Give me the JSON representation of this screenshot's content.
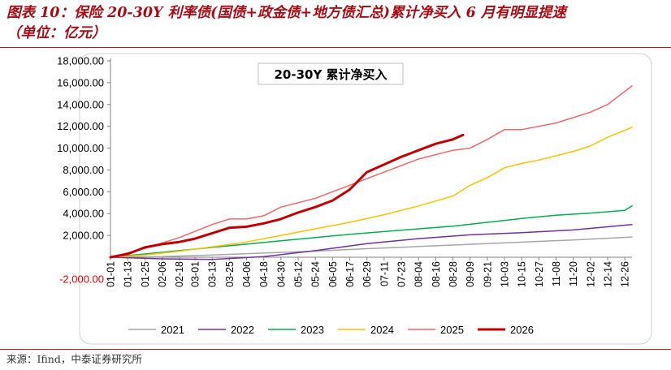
{
  "figure": {
    "title": "图表 10：保险 20-30Y 利率债(国债+政金债+地方债汇总)累计净买入 6 月有明显提速",
    "unit": "（单位：亿元）",
    "source": "来源：Ifind，中泰证券研究所"
  },
  "colors": {
    "heading": "#a30e17",
    "axis_negative": "#e00000",
    "rule": "#b01a20"
  },
  "chart_data": {
    "type": "line",
    "title": "20-30Y 累计净买入",
    "xlabel": "",
    "ylabel": "",
    "x_ticks": [
      "01-01",
      "01-13",
      "01-25",
      "02-06",
      "02-18",
      "03-01",
      "03-13",
      "03-25",
      "04-06",
      "04-18",
      "04-30",
      "05-12",
      "05-24",
      "06-05",
      "06-17",
      "06-29",
      "07-11",
      "07-23",
      "08-04",
      "08-16",
      "08-28",
      "09-09",
      "09-21",
      "10-03",
      "10-15",
      "10-27",
      "11-08",
      "11-20",
      "12-02",
      "12-14",
      "12-26"
    ],
    "y_ticks": [
      "18,000.00",
      "16,000.00",
      "14,000.00",
      "12,000.00",
      "10,000.00",
      "8,000.00",
      "6,000.00",
      "4,000.00",
      "2,000.00",
      "-2,000.00"
    ],
    "y_tick_values": [
      18000,
      16000,
      14000,
      12000,
      10000,
      8000,
      6000,
      4000,
      2000,
      -2000
    ],
    "ylim": [
      -2000,
      18000
    ],
    "grid": false,
    "legend_position": "bottom",
    "series": [
      {
        "name": "2021",
        "color": "#a6a6a6",
        "width": 1.5,
        "x": [
          "01-01",
          "02-06",
          "03-13",
          "04-18",
          "05-24",
          "06-29",
          "08-04",
          "09-09",
          "10-15",
          "11-20",
          "12-31"
        ],
        "y": [
          0,
          60,
          200,
          380,
          560,
          780,
          980,
          1180,
          1380,
          1580,
          1850
        ]
      },
      {
        "name": "2022",
        "color": "#7030a0",
        "width": 1.5,
        "x": [
          "01-01",
          "02-06",
          "03-13",
          "04-18",
          "05-24",
          "06-29",
          "08-04",
          "09-09",
          "10-15",
          "11-20",
          "12-31"
        ],
        "y": [
          0,
          -150,
          -200,
          50,
          600,
          1250,
          1700,
          2050,
          2250,
          2500,
          3000
        ]
      },
      {
        "name": "2023",
        "color": "#00b050",
        "width": 1.5,
        "x": [
          "01-01",
          "01-25",
          "02-18",
          "03-13",
          "04-06",
          "04-30",
          "05-24",
          "06-17",
          "07-11",
          "08-04",
          "08-28",
          "09-21",
          "10-15",
          "11-08",
          "12-02",
          "12-26",
          "12-31"
        ],
        "y": [
          0,
          300,
          600,
          900,
          1200,
          1500,
          1800,
          2100,
          2350,
          2600,
          2850,
          3200,
          3550,
          3850,
          4050,
          4300,
          4700
        ]
      },
      {
        "name": "2024",
        "color": "#ffc000",
        "width": 1.5,
        "x": [
          "01-01",
          "01-25",
          "02-18",
          "03-13",
          "04-06",
          "04-30",
          "05-24",
          "06-17",
          "07-11",
          "08-04",
          "08-28",
          "09-09",
          "09-21",
          "10-03",
          "10-15",
          "10-27",
          "11-08",
          "11-20",
          "12-02",
          "12-14",
          "12-31"
        ],
        "y": [
          0,
          200,
          550,
          950,
          1400,
          2000,
          2600,
          3200,
          3900,
          4700,
          5600,
          6600,
          7300,
          8200,
          8600,
          8900,
          9300,
          9700,
          10200,
          11000,
          11900
        ]
      },
      {
        "name": "2025",
        "color": "#f0676b",
        "width": 1.5,
        "x": [
          "01-01",
          "01-25",
          "02-18",
          "03-13",
          "03-25",
          "04-06",
          "04-18",
          "04-30",
          "05-24",
          "06-17",
          "07-11",
          "08-04",
          "08-28",
          "09-09",
          "09-21",
          "10-03",
          "10-15",
          "11-08",
          "12-02",
          "12-14",
          "12-31"
        ],
        "y": [
          0,
          800,
          1800,
          3000,
          3500,
          3500,
          3800,
          4600,
          5400,
          6600,
          7800,
          9000,
          9800,
          10000,
          10800,
          11700,
          11700,
          12300,
          13300,
          14000,
          15700
        ]
      },
      {
        "name": "2026",
        "color": "#c00000",
        "width": 3,
        "x": [
          "01-01",
          "01-13",
          "01-25",
          "02-06",
          "02-18",
          "03-01",
          "03-13",
          "03-25",
          "04-06",
          "04-18",
          "04-30",
          "05-12",
          "05-24",
          "06-05",
          "06-17",
          "06-29",
          "07-11",
          "07-23",
          "08-04",
          "08-16",
          "08-28",
          "09-04"
        ],
        "y": [
          0,
          300,
          900,
          1200,
          1400,
          1700,
          2200,
          2700,
          2800,
          3100,
          3500,
          4100,
          4600,
          5200,
          6200,
          7800,
          8500,
          9200,
          9800,
          10400,
          10800,
          11200
        ]
      }
    ]
  }
}
